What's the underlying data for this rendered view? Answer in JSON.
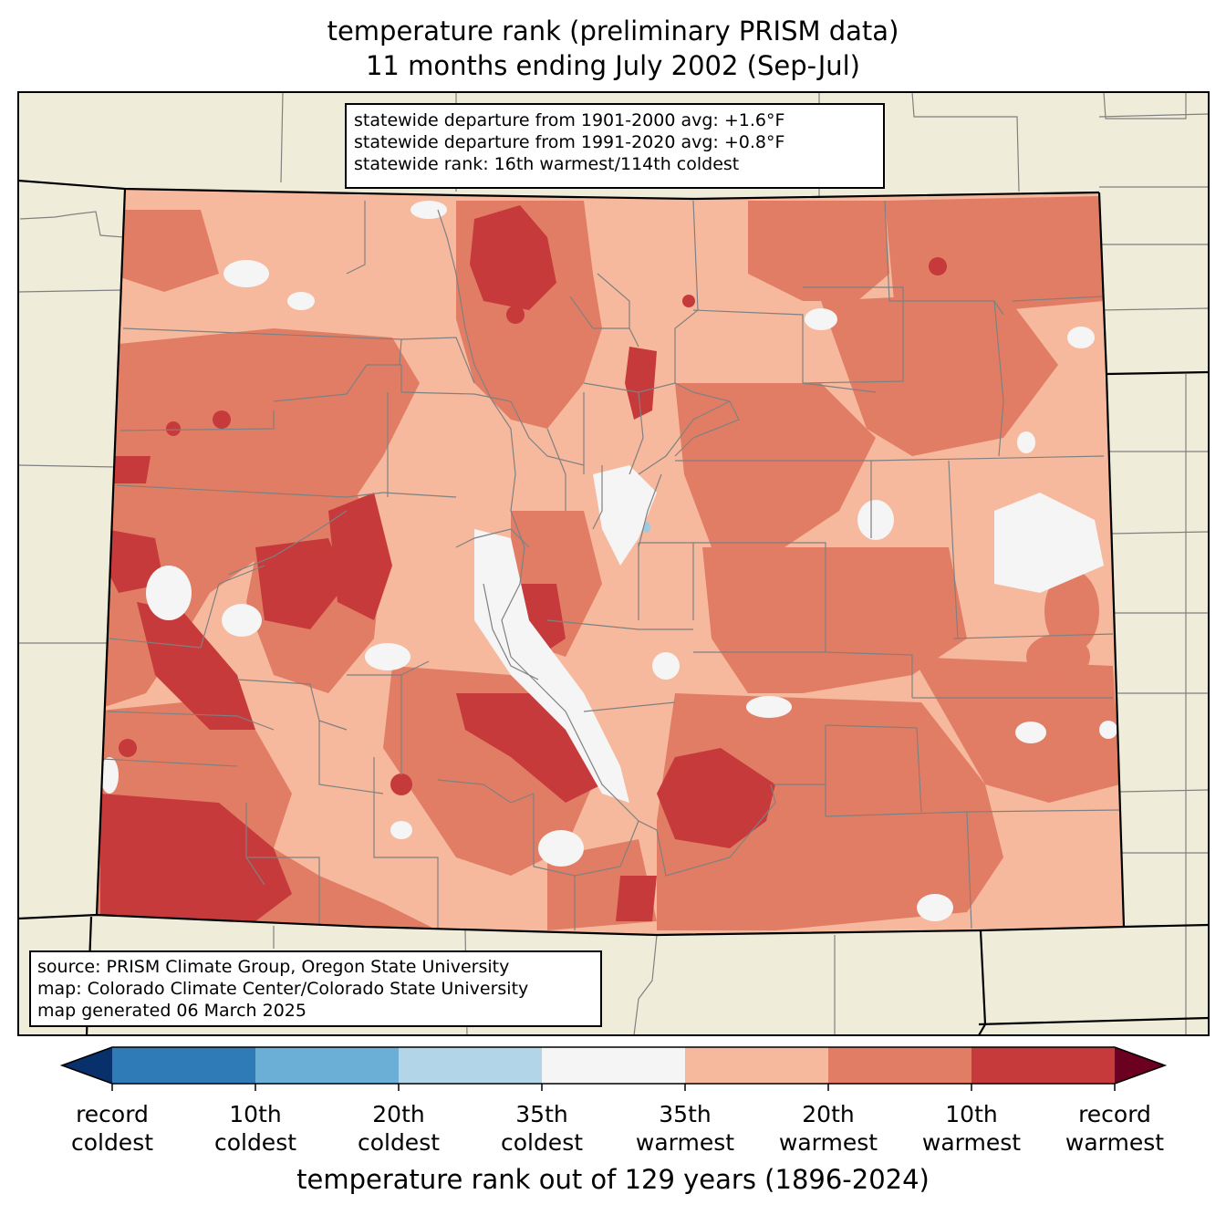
{
  "title": {
    "line1": "temperature rank (preliminary PRISM data)",
    "line2": "11 months ending July 2002 (Sep-Jul)"
  },
  "stats": {
    "line1": "statewide departure from 1901-2000 avg: +1.6°F",
    "line2": "statewide departure from 1991-2020 avg: +0.8°F",
    "line3": "statewide rank: 16th warmest/114th coldest"
  },
  "source": {
    "line1": "source: PRISM Climate Group, Oregon State University",
    "line2": "map: Colorado Climate Center/Colorado State University",
    "line3": "map generated 06 March 2025"
  },
  "colorbar": {
    "label": "temperature rank out of 129 years (1896-2024)",
    "ticks": [
      {
        "top": "record",
        "bottom": "coldest"
      },
      {
        "top": "10th",
        "bottom": "coldest"
      },
      {
        "top": "20th",
        "bottom": "coldest"
      },
      {
        "top": "35th",
        "bottom": "coldest"
      },
      {
        "top": "35th",
        "bottom": "warmest"
      },
      {
        "top": "20th",
        "bottom": "warmest"
      },
      {
        "top": "10th",
        "bottom": "warmest"
      },
      {
        "top": "record",
        "bottom": "warmest"
      }
    ],
    "colors": {
      "below_record_cold": "#08306b",
      "record_to_10th_cold": "#2f7bb8",
      "10th_to_20th_cold": "#6baed6",
      "20th_to_35th_cold": "#b3d5e8",
      "neutral": "#f5f5f5",
      "35th_to_20th_warm": "#f6b99d",
      "20th_to_10th_warm": "#e27d65",
      "10th_to_record_warm": "#c73a3c",
      "above_record_warm": "#6b0020"
    }
  },
  "map_colors": {
    "land_outside": "#efedda",
    "state_border": "#000000",
    "county_border": "#808080",
    "river": "#808080",
    "water": "#9ecae1"
  }
}
